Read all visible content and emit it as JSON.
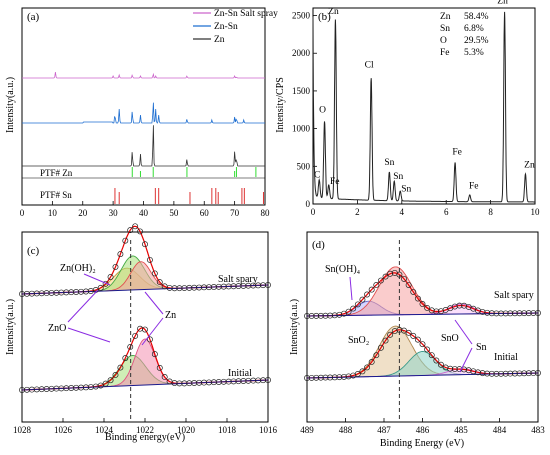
{
  "chart_data": [
    {
      "panel": "(a)",
      "type": "line",
      "ylabel": "Intensity(a.u.)",
      "xlim": [
        0,
        80
      ],
      "x_ticks": [
        "0",
        "10",
        "20",
        "30",
        "40",
        "50",
        "60",
        "70",
        "80"
      ],
      "legend": [
        "Zn-Sn Salt spray",
        "Zn-Sn",
        "Zn"
      ],
      "series": [
        {
          "name": "Zn-Sn Salt spray",
          "color": "#cc66cc",
          "peaks": [
            [
              11.0,
              6
            ],
            [
              30.0,
              2
            ],
            [
              32.0,
              3
            ],
            [
              36.3,
              3
            ],
            [
              39.0,
              2
            ],
            [
              43.2,
              4
            ],
            [
              44.0,
              2
            ],
            [
              54.3,
              2
            ],
            [
              70.0,
              2
            ],
            [
              70.6,
              1
            ]
          ]
        },
        {
          "name": "Zn-Sn",
          "color": "#1f6fd1",
          "peaks": [
            [
              30.6,
              9
            ],
            [
              32.0,
              14
            ],
            [
              36.3,
              12
            ],
            [
              39.0,
              8
            ],
            [
              43.2,
              22
            ],
            [
              44.0,
              14
            ],
            [
              45.0,
              8
            ],
            [
              54.3,
              4
            ],
            [
              62.5,
              3
            ],
            [
              70.0,
              6
            ],
            [
              70.6,
              5
            ],
            [
              73.0,
              3
            ]
          ]
        },
        {
          "name": "Zn",
          "color": "#333333",
          "peaks": [
            [
              36.3,
              15
            ],
            [
              39.0,
              12
            ],
            [
              43.2,
              44
            ],
            [
              54.3,
              7
            ],
            [
              70.0,
              10
            ],
            [
              70.6,
              8
            ],
            [
              70.1,
              6
            ]
          ]
        }
      ],
      "references": [
        {
          "name": "PTF# Zn",
          "color": "#33dd33",
          "lines": [
            36.3,
            39.0,
            43.2,
            54.3,
            70.0,
            70.6,
            77.0
          ]
        },
        {
          "name": "PTF# Sn",
          "color": "#dd3333",
          "lines": [
            30.6,
            32.0,
            43.9,
            45.0,
            55.3,
            62.5,
            63.8,
            64.6,
            72.4,
            73.2,
            79.5
          ]
        }
      ]
    },
    {
      "panel": "(b)",
      "type": "line",
      "ylabel": "Intensity/CPS",
      "xlim": [
        0,
        10
      ],
      "ylim": [
        0,
        2600
      ],
      "x_ticks": [
        "0",
        "2",
        "4",
        "6",
        "8",
        "10"
      ],
      "y_ticks": [
        "0",
        "500",
        "1000",
        "1500",
        "2000",
        "2500"
      ],
      "composition": [
        {
          "element": "Zn",
          "value": "58.4%"
        },
        {
          "element": "Sn",
          "value": "6.8%"
        },
        {
          "element": "O",
          "value": "29.5%"
        },
        {
          "element": "Fe",
          "value": "5.3%"
        }
      ],
      "peaks": [
        {
          "label": "C",
          "x": 0.28,
          "y": 240
        },
        {
          "label": "O",
          "x": 0.52,
          "y": 1020
        },
        {
          "label": "Fe",
          "x": 0.71,
          "y": 180
        },
        {
          "label": "Zn",
          "x": 1.01,
          "y": 2380
        },
        {
          "label": "Cl",
          "x": 2.62,
          "y": 1620
        },
        {
          "label": "Sn",
          "x": 3.44,
          "y": 380
        },
        {
          "label": "Sn",
          "x": 3.66,
          "y": 260
        },
        {
          "label": "Sn",
          "x": 3.93,
          "y": 130
        },
        {
          "label": "Fe",
          "x": 6.4,
          "y": 520
        },
        {
          "label": "Fe",
          "x": 7.06,
          "y": 90
        },
        {
          "label": "Zn",
          "x": 8.63,
          "y": 2520
        },
        {
          "label": "Zn",
          "x": 9.57,
          "y": 370
        }
      ],
      "peak_labels": [
        "Zn",
        "O",
        "C",
        "Fe",
        "Cl",
        "Sn",
        "Sn",
        "Sn",
        "Fe",
        "Fe",
        "Zn",
        "Zn"
      ]
    },
    {
      "panel": "(c)",
      "type": "line",
      "xlabel": "Binding energy(eV)",
      "ylabel": "Intensity(a.u.)",
      "xlim": [
        1028,
        1016
      ],
      "x_ticks": [
        "1028",
        "1026",
        "1024",
        "1022",
        "1020",
        "1018",
        "1016"
      ],
      "dashed_line_x": 1022.7,
      "spectra": [
        {
          "name": "Salt spary",
          "center": 1022.7,
          "height": 0.85,
          "components": [
            {
              "label": "Zn(OH)₂",
              "center": 1022.9
            },
            {
              "label": "ZnO",
              "center": 1022.6
            },
            {
              "label": "Zn",
              "center": 1022.2
            }
          ]
        },
        {
          "name": "Initial",
          "center": 1022.2,
          "height": 0.9,
          "components": [
            {
              "label": "ZnO",
              "center": 1022.6
            },
            {
              "label": "Zn",
              "center": 1022.0
            }
          ]
        }
      ],
      "annotations": [
        "Zn(OH)₂",
        "ZnO",
        "Zn",
        "Salt spary",
        "Initial"
      ]
    },
    {
      "panel": "(d)",
      "type": "line",
      "xlabel": "Binding Energy (eV)",
      "ylabel": "Intensity(a.u.)",
      "xlim": [
        489,
        483
      ],
      "x_ticks": [
        "489",
        "488",
        "487",
        "486",
        "485",
        "484",
        "483"
      ],
      "dashed_line_x": 486.6,
      "spectra": [
        {
          "name": "Salt spary",
          "center": 486.7,
          "height": 0.9,
          "components": [
            {
              "label": "Sn(OH)₄",
              "center": 487.4
            },
            {
              "label": "SnO₂",
              "center": 486.7
            },
            {
              "label": "Sn",
              "center": 485.0
            }
          ]
        },
        {
          "name": "Initial",
          "center": 486.7,
          "height": 0.6,
          "components": [
            {
              "label": "SnO₂",
              "center": 486.7
            },
            {
              "label": "SnO",
              "center": 486.0
            },
            {
              "label": "Sn",
              "center": 485.0
            }
          ]
        }
      ],
      "annotations": [
        "Sn(OH)₄",
        "SnO₂",
        "SnO",
        "Sn",
        "Salt spary",
        "Initial"
      ]
    }
  ]
}
